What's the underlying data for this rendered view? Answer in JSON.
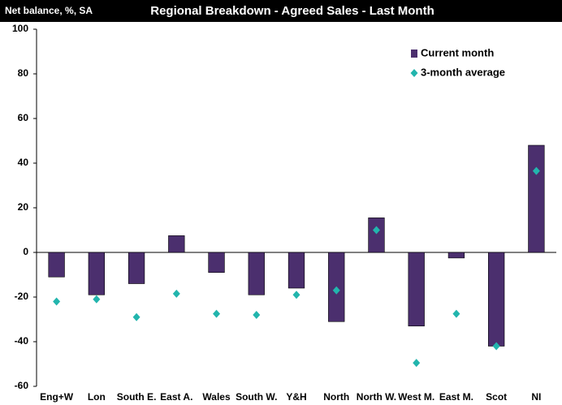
{
  "chart_data": {
    "type": "bar",
    "title": "Regional Breakdown - Agreed Sales - Last Month",
    "y_label": "Net balance, %, SA",
    "categories": [
      "Eng+W",
      "Lon",
      "South E.",
      "East A.",
      "Wales",
      "South W.",
      "Y&H",
      "North",
      "North W.",
      "West M.",
      "East M.",
      "Scot",
      "NI"
    ],
    "series": [
      {
        "name": "Current month",
        "type": "bar",
        "color": "#4b2f6e",
        "values": [
          -11,
          -19,
          -14,
          7.5,
          -9,
          -19,
          -16,
          -31,
          15.5,
          -33,
          -2.5,
          -42,
          48
        ]
      },
      {
        "name": "3-month average",
        "type": "scatter",
        "color": "#22b5ad",
        "values": [
          -22,
          -21,
          -29,
          -18.5,
          -27.5,
          -28,
          -19,
          -17,
          10,
          -49.5,
          -27.5,
          -42,
          36.5
        ]
      }
    ],
    "ylim": [
      -60,
      100
    ],
    "yticks": [
      -60,
      -40,
      -20,
      0,
      20,
      40,
      60,
      80,
      100
    ],
    "grid": false,
    "legend": "top-right"
  }
}
